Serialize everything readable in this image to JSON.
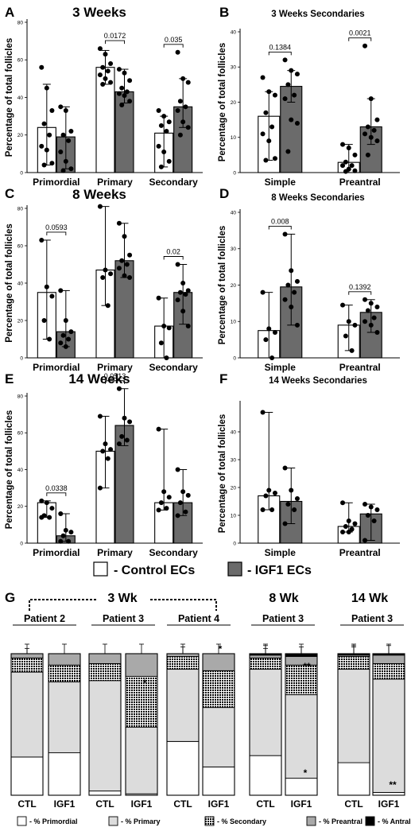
{
  "legend": {
    "control": "- Control ECs",
    "igf1": "- IGF1 ECs"
  },
  "colors": {
    "control": "#ffffff",
    "igf1": "#6b6b6b",
    "primordial": "#ffffff",
    "primary": "#dcdcdc",
    "secondary": "pattern",
    "preantral": "#a9a9a9",
    "antral": "#000000"
  },
  "chart_data": [
    {
      "panel": "A",
      "type": "bar",
      "title": "3 Weeks",
      "ylabel": "Percentage of total follicles",
      "categories": [
        "Primordial",
        "Primary",
        "Secondary"
      ],
      "ylim": [
        0,
        80
      ],
      "yticks": [
        0,
        20,
        40,
        60,
        80
      ],
      "series": [
        {
          "name": "Control ECs",
          "values": [
            24,
            56,
            21
          ],
          "errors_low": [
            4,
            47,
            3
          ],
          "errors_high": [
            47,
            65,
            30
          ],
          "points": [
            [
              56,
              45,
              33,
              26,
              20,
              14,
              12,
              5,
              4
            ],
            [
              66,
              63,
              58,
              56,
              54,
              52,
              50,
              48,
              47
            ],
            [
              33,
              30,
              27,
              25,
              22,
              14,
              11,
              6,
              3
            ]
          ]
        },
        {
          "name": "IGF1 ECs",
          "values": [
            19,
            43,
            35
          ],
          "errors_low": [
            2,
            37,
            24
          ],
          "errors_high": [
            35,
            55,
            50
          ],
          "points": [
            [
              35,
              33,
              22,
              20,
              17,
              11,
              6,
              2,
              1
            ],
            [
              55,
              53,
              49,
              45,
              43,
              42,
              41,
              38,
              36
            ],
            [
              64,
              50,
              48,
              38,
              35,
              33,
              27,
              24,
              20
            ]
          ]
        }
      ],
      "comparisons": [
        {
          "category": "Primary",
          "p": "0.0172"
        },
        {
          "category": "Secondary",
          "p": "0.035"
        }
      ]
    },
    {
      "panel": "B",
      "type": "bar",
      "title": "3 Weeks Secondaries",
      "ylabel": "Percentage of total follicles",
      "categories": [
        "Simple",
        "Preantral"
      ],
      "ylim": [
        0,
        40
      ],
      "yticks": [
        0,
        10,
        20,
        30,
        40
      ],
      "series": [
        {
          "name": "Control ECs",
          "values": [
            16,
            2.9
          ],
          "errors_low": [
            3.5,
            0
          ],
          "errors_high": [
            23,
            8
          ],
          "points": [
            [
              27,
              23,
              22,
              17,
              13,
              11,
              9,
              4,
              3.5
            ],
            [
              8,
              7,
              5,
              3,
              2,
              2,
              1,
              0.5,
              0.3
            ]
          ]
        },
        {
          "name": "IGF1 ECs",
          "values": [
            24.5,
            13
          ],
          "errors_low": [
            20,
            8
          ],
          "errors_high": [
            29,
            21
          ],
          "points": [
            [
              32,
              29,
              28,
              25,
              22,
              21,
              15,
              14,
              6
            ],
            [
              36,
              21,
              15,
              13,
              12,
              11,
              10,
              9,
              5
            ]
          ]
        }
      ],
      "comparisons": [
        {
          "category": "Simple",
          "p": "0.1384"
        },
        {
          "category": "Preantral",
          "p": "0.0021"
        }
      ]
    },
    {
      "panel": "C",
      "type": "bar",
      "title": "8 Weeks",
      "ylabel": "Percentage of total follicles",
      "categories": [
        "Primordial",
        "Primary",
        "Secondary"
      ],
      "ylim": [
        0,
        80
      ],
      "yticks": [
        0,
        20,
        40,
        60,
        80
      ],
      "series": [
        {
          "name": "Control ECs",
          "values": [
            35,
            47,
            17
          ],
          "errors_low": [
            10,
            28,
            0
          ],
          "errors_high": [
            63,
            81,
            32
          ],
          "points": [
            [
              63,
              38,
              33,
              20,
              10
            ],
            [
              81,
              47,
              45,
              43,
              28
            ],
            [
              32,
              17,
              16,
              8,
              0
            ]
          ]
        },
        {
          "name": "IGF1 ECs",
          "values": [
            14,
            52,
            35
          ],
          "errors_low": [
            6,
            43,
            18
          ],
          "errors_high": [
            36,
            72,
            50
          ],
          "points": [
            [
              36,
              20,
              14,
              12,
              10,
              8,
              6
            ],
            [
              72,
              65,
              55,
              52,
              50,
              48,
              44,
              43
            ],
            [
              50,
              40,
              36,
              35,
              34,
              31,
              25,
              17
            ]
          ]
        }
      ],
      "comparisons": [
        {
          "category": "Primordial",
          "p": "0.0593"
        },
        {
          "category": "Secondary",
          "p": "0.02"
        }
      ]
    },
    {
      "panel": "D",
      "type": "bar",
      "title": "8 Weeks Secondaries",
      "ylabel": "Percentage of total follicles",
      "categories": [
        "Simple",
        "Preantral"
      ],
      "ylim": [
        0,
        40
      ],
      "yticks": [
        0,
        10,
        20,
        30,
        40
      ],
      "series": [
        {
          "name": "Control ECs",
          "values": [
            7.5,
            9
          ],
          "errors_low": [
            0,
            2
          ],
          "errors_high": [
            18,
            14.5
          ],
          "points": [
            [
              18,
              8,
              7,
              5,
              0
            ],
            [
              14.5,
              10,
              9,
              6,
              2
            ]
          ]
        },
        {
          "name": "IGF1 ECs",
          "values": [
            19.5,
            12.5
          ],
          "errors_low": [
            9,
            7
          ],
          "errors_high": [
            34,
            16
          ],
          "points": [
            [
              34,
              24,
              21,
              20,
              18,
              16,
              14,
              9
            ],
            [
              16,
              15,
              14,
              13,
              11,
              10,
              9,
              7
            ]
          ]
        }
      ],
      "comparisons": [
        {
          "category": "Simple",
          "p": "0.008"
        },
        {
          "category": "Preantral",
          "p": "0.1392"
        }
      ]
    },
    {
      "panel": "E",
      "type": "bar",
      "title": "14 Weeks",
      "ylabel": "Percentage of total follicles",
      "categories": [
        "Primordial",
        "Primary",
        "Secondary"
      ],
      "ylim": [
        0,
        80
      ],
      "yticks": [
        0,
        20,
        40,
        60,
        80
      ],
      "series": [
        {
          "name": "Control ECs",
          "values": [
            22,
            50,
            22
          ],
          "errors_low": [
            14,
            30,
            18
          ],
          "errors_high": [
            23,
            69,
            62
          ],
          "points": [
            [
              23,
              22,
              19,
              15,
              14,
              14
            ],
            [
              69,
              54,
              51,
              50,
              46,
              30
            ],
            [
              62,
              28,
              25,
              22,
              19,
              18
            ]
          ]
        },
        {
          "name": "IGF1 ECs",
          "values": [
            4,
            64,
            22
          ],
          "errors_low": [
            1,
            53,
            15
          ],
          "errors_high": [
            16,
            84,
            40
          ],
          "points": [
            [
              16,
              7,
              6,
              4,
              1,
              1
            ],
            [
              84,
              68,
              66,
              58,
              56,
              54
            ],
            [
              40,
              28,
              26,
              22,
              17,
              15
            ]
          ]
        }
      ],
      "comparisons": [
        {
          "category": "Primordial",
          "p": "0.0338"
        },
        {
          "category": "Primary",
          "p": "0.0513"
        }
      ]
    },
    {
      "panel": "F",
      "type": "bar",
      "title": "14 Weeks Secondaries",
      "ylabel": "Percentage of total follicles",
      "categories": [
        "Simple",
        "Preantral"
      ],
      "ylim": [
        0,
        50
      ],
      "yticks": [
        0,
        10,
        20,
        30,
        40
      ],
      "series": [
        {
          "name": "Control ECs",
          "values": [
            17,
            6
          ],
          "errors_low": [
            12,
            4
          ],
          "errors_high": [
            47,
            14.5
          ],
          "points": [
            [
              47,
              19,
              18,
              17,
              12,
              12
            ],
            [
              14.5,
              8,
              7,
              6,
              5,
              4,
              4
            ]
          ]
        },
        {
          "name": "IGF1 ECs",
          "values": [
            15,
            10.5
          ],
          "errors_low": [
            7,
            1
          ],
          "errors_high": [
            27,
            14
          ],
          "points": [
            [
              27,
              19,
              16,
              14,
              12,
              7
            ],
            [
              14,
              13,
              12,
              10,
              8,
              1
            ]
          ]
        }
      ],
      "comparisons": []
    },
    {
      "panel": "G",
      "type": "bar",
      "stacked": true,
      "groups_top": [
        {
          "label": "3 Wk",
          "dashed": true
        },
        {
          "label": "8 Wk"
        },
        {
          "label": "14 Wk"
        }
      ],
      "xlabels": [
        "CTL",
        "IGF1"
      ],
      "segments": [
        "- % Primordial",
        "- % Primary",
        "- % Secondary",
        "- % Preantral",
        "- % Antral"
      ],
      "series": [
        {
          "name": "Patient 2",
          "week": "3 Wk",
          "ctl": {
            "primordial": 27,
            "primary": 60,
            "secondary": 10,
            "preantral": 3,
            "antral": 0
          },
          "igf1": {
            "primordial": 30,
            "primary": 50,
            "secondary": 12,
            "preantral": 8,
            "antral": 0
          }
        },
        {
          "name": "Patient 3",
          "week": "3 Wk",
          "ctl": {
            "primordial": 3,
            "primary": 78,
            "secondary": 12,
            "preantral": 7,
            "antral": 0
          },
          "igf1": {
            "primordial": 1,
            "primary": 47,
            "secondary": 36,
            "preantral": 16,
            "antral": 0
          }
        },
        {
          "name": "Patient 4",
          "week": "3 Wk",
          "ctl": {
            "primordial": 38,
            "primary": 51,
            "secondary": 9,
            "preantral": 2,
            "antral": 0
          },
          "igf1": {
            "primordial": 20,
            "primary": 42,
            "secondary": 26,
            "preantral": 12,
            "antral": 0
          }
        },
        {
          "name": "Patient 3",
          "week": "8 Wk",
          "ctl": {
            "primordial": 28,
            "primary": 61,
            "secondary": 8,
            "preantral": 2,
            "antral": 1
          },
          "igf1": {
            "primordial": 12,
            "primary": 59,
            "secondary": 21,
            "preantral": 6,
            "antral": 2
          }
        },
        {
          "name": "Patient 3",
          "week": "14 Wk",
          "ctl": {
            "primordial": 23,
            "primary": 66,
            "secondary": 9,
            "preantral": 1,
            "antral": 1
          },
          "igf1": {
            "primordial": 2,
            "primary": 80,
            "secondary": 11,
            "preantral": 6,
            "antral": 1
          }
        }
      ],
      "stars": [
        {
          "series": 1,
          "bar": "igf1",
          "text": "*"
        },
        {
          "series": 2,
          "bar": "igf1",
          "text": "*"
        },
        {
          "series": 3,
          "bar": "igf1",
          "text": "**"
        },
        {
          "series": 3,
          "bar": "igf1",
          "text": "*"
        },
        {
          "series": 4,
          "bar": "igf1",
          "text": "**"
        }
      ]
    }
  ]
}
